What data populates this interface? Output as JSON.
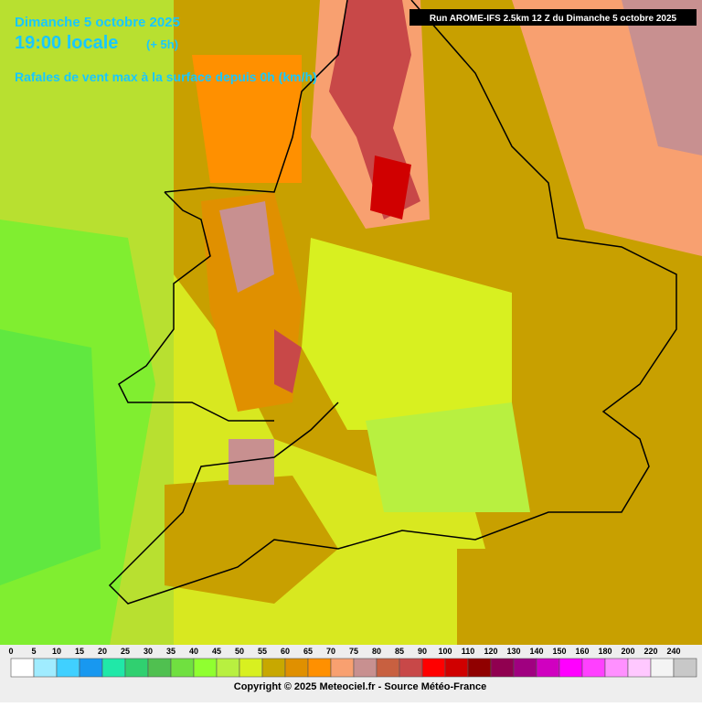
{
  "header": {
    "date": "Dimanche 5 octobre 2025",
    "time": "19:00 locale",
    "offset": "(+ 5h)",
    "subtitle": "Rafales de vent max à la surface depuis 0h (km/h)",
    "run": "Run AROME-IFS 2.5km 12 Z du Dimanche 5 octobre 2025"
  },
  "legend": [
    {
      "label": 0,
      "color": "#ffffff"
    },
    {
      "label": 5,
      "color": "#a0ecff"
    },
    {
      "label": 10,
      "color": "#40d0ff"
    },
    {
      "label": 15,
      "color": "#1898f0"
    },
    {
      "label": 20,
      "color": "#20e8a8"
    },
    {
      "label": 25,
      "color": "#30d070"
    },
    {
      "label": 30,
      "color": "#50c050"
    },
    {
      "label": 35,
      "color": "#70e040"
    },
    {
      "label": 40,
      "color": "#90ff30"
    },
    {
      "label": 45,
      "color": "#b8f040"
    },
    {
      "label": 50,
      "color": "#d8f020"
    },
    {
      "label": 55,
      "color": "#c8a800"
    },
    {
      "label": 60,
      "color": "#e09000"
    },
    {
      "label": 65,
      "color": "#ff9000"
    },
    {
      "label": 70,
      "color": "#f8a070"
    },
    {
      "label": 75,
      "color": "#c89090"
    },
    {
      "label": 80,
      "color": "#c86040"
    },
    {
      "label": 85,
      "color": "#c84848"
    },
    {
      "label": 90,
      "color": "#ff0000"
    },
    {
      "label": 100,
      "color": "#d00000"
    },
    {
      "label": 110,
      "color": "#900000"
    },
    {
      "label": 120,
      "color": "#900050"
    },
    {
      "label": 130,
      "color": "#a00080"
    },
    {
      "label": 140,
      "color": "#d000c0"
    },
    {
      "label": 150,
      "color": "#ff00ff"
    },
    {
      "label": 160,
      "color": "#ff40ff"
    },
    {
      "label": 180,
      "color": "#ff90ff"
    },
    {
      "label": 200,
      "color": "#ffc8ff"
    },
    {
      "label": 220,
      "color": "#f4f4f4"
    },
    {
      "label": 240,
      "color": "#c8c8c8"
    }
  ],
  "footer": {
    "copyright": "Copyright © 2025 Meteociel.fr - Source Météo-France"
  }
}
